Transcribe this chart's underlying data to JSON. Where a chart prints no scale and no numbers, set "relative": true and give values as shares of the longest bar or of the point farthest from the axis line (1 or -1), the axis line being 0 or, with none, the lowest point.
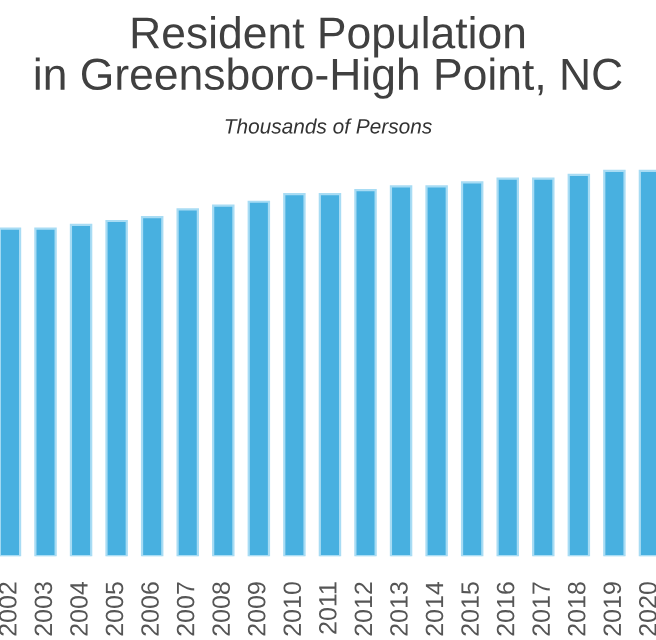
{
  "chart_data": {
    "type": "bar",
    "title": "Resident Population\nin Greensboro-High Point, NC",
    "subtitle": "Thousands of Persons",
    "relative": true,
    "color": "#48b0e0",
    "categories": [
      "2002",
      "2003",
      "2004",
      "2005",
      "2006",
      "2007",
      "2008",
      "2009",
      "2010",
      "2011",
      "2012",
      "2013",
      "2014",
      "2015",
      "2016",
      "2017",
      "2018",
      "2019",
      "2020"
    ],
    "values": [
      0.85,
      0.85,
      0.86,
      0.87,
      0.88,
      0.9,
      0.91,
      0.92,
      0.94,
      0.94,
      0.95,
      0.96,
      0.96,
      0.97,
      0.98,
      0.98,
      0.99,
      1.0,
      1.0
    ],
    "grid": false,
    "legend": false
  }
}
